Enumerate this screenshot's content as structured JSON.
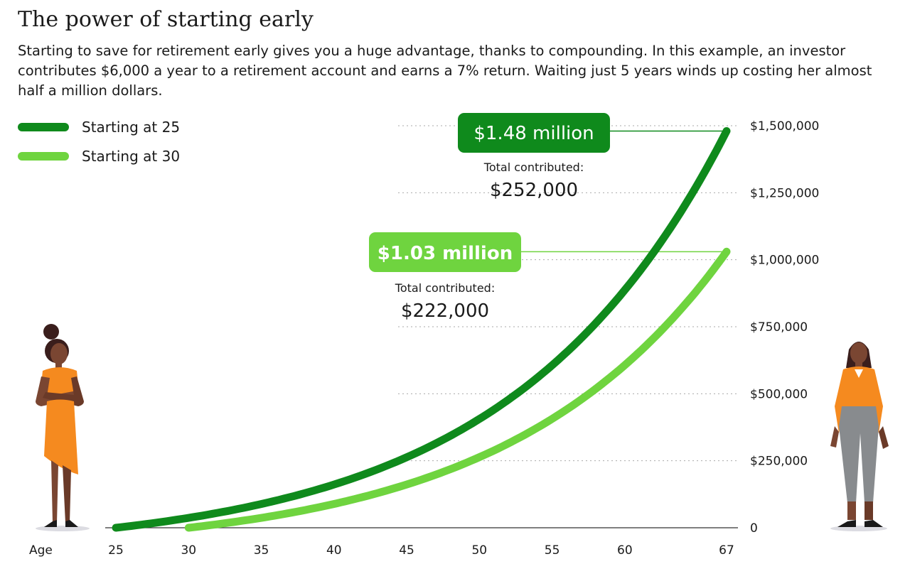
{
  "header": {
    "title": "The power of starting early",
    "subtitle": "Starting to save for retirement early gives you a huge advantage, thanks to compounding. In this example, an investor contributes $6,000 a year to a retirement account and earns a 7% return. Waiting just 5 years winds up costing her almost half a million dollars."
  },
  "colors": {
    "dark_green": "#0f8a1c",
    "light_green": "#6fd43f",
    "grid": "#aaaaaa",
    "axis": "#333333"
  },
  "chart_data": {
    "type": "line",
    "title": "The power of starting early",
    "xlabel": "Age",
    "ylabel": "",
    "xlim": [
      25,
      67
    ],
    "ylim": [
      0,
      1500000
    ],
    "x_ticks": [
      25,
      30,
      35,
      40,
      45,
      50,
      55,
      60,
      67
    ],
    "y_ticks": [
      {
        "value": 0,
        "label": "0"
      },
      {
        "value": 250000,
        "label": "$250,000"
      },
      {
        "value": 500000,
        "label": "$500,000"
      },
      {
        "value": 750000,
        "label": "$750,000"
      },
      {
        "value": 1000000,
        "label": "$1,000,000"
      },
      {
        "value": 1250000,
        "label": "$1,250,000"
      },
      {
        "value": 1500000,
        "label": "$1,500,000"
      }
    ],
    "annual_contribution": 6000,
    "annual_return": 0.07,
    "series": [
      {
        "name": "Starting at 25",
        "start_age": 25,
        "end_age": 67,
        "final_value": 1480000,
        "callout": "$1.48 million",
        "contributed_label": "Total contributed:",
        "contributed": "$252,000"
      },
      {
        "name": "Starting at 30",
        "start_age": 30,
        "end_age": 67,
        "final_value": 1030000,
        "callout": "$1.03 million",
        "contributed_label": "Total contributed:",
        "contributed": "$222,000"
      }
    ]
  }
}
